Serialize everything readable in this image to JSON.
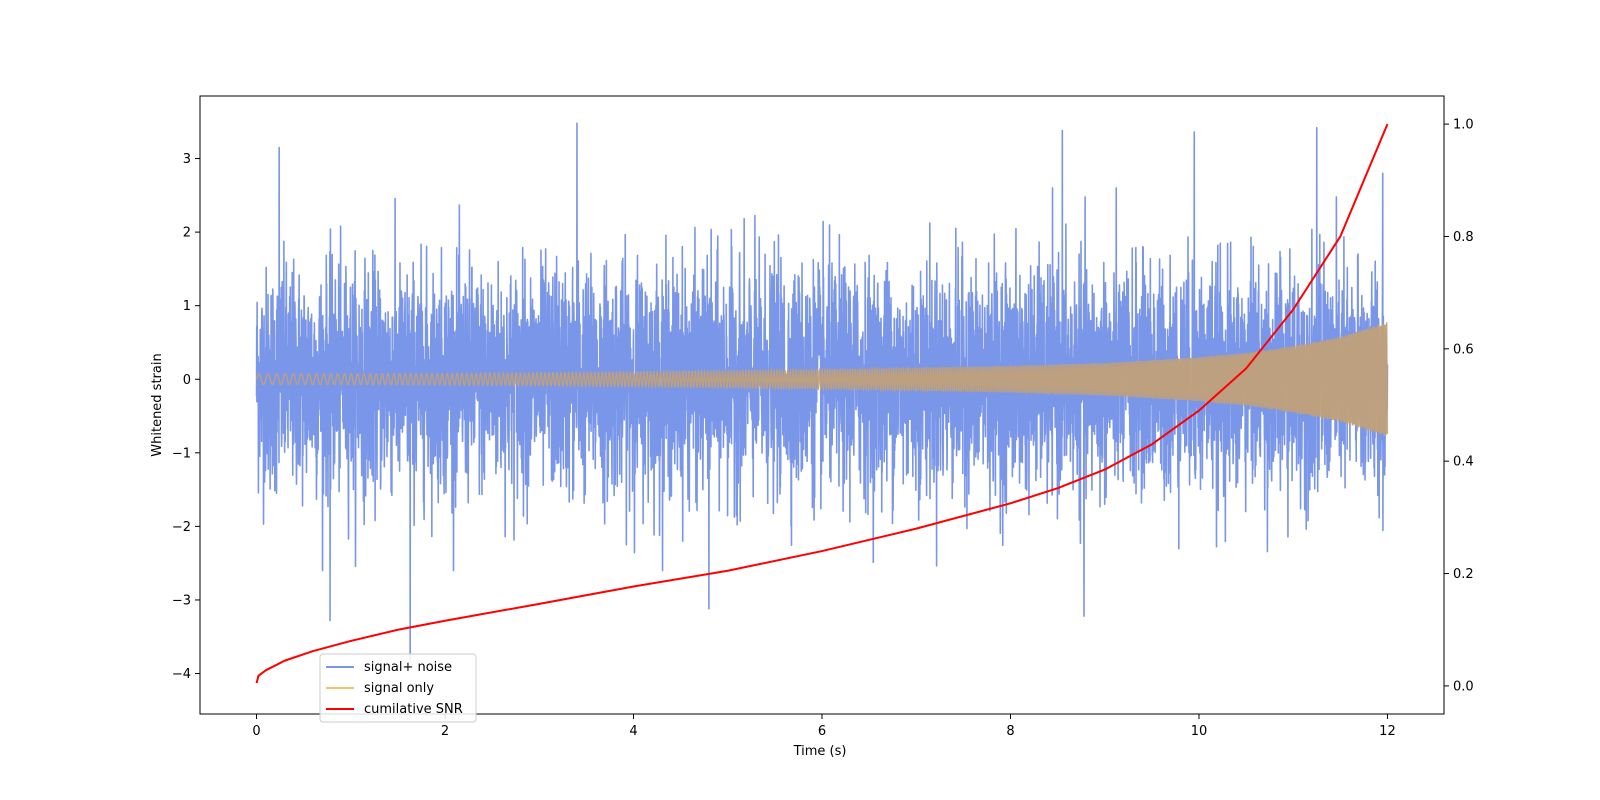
{
  "chart_data": {
    "type": "line",
    "xlabel": "Time (s)",
    "ylabel": "Whitened strain",
    "xlim": [
      -0.6,
      12.6
    ],
    "ylim_left": [
      -4.55,
      3.85
    ],
    "ylim_right": [
      -0.05,
      1.05
    ],
    "x_ticks": [
      0,
      2,
      4,
      6,
      8,
      10,
      12
    ],
    "y_ticks_left": [
      -4,
      -3,
      -2,
      -1,
      0,
      1,
      2,
      3
    ],
    "y_ticks_right": [
      0.0,
      0.2,
      0.4,
      0.6,
      0.8,
      1.0
    ],
    "grid": false,
    "legend_position": "lower-left",
    "colors": {
      "signal_noise": "#7a96e8",
      "signal_only": "#f5c070",
      "overlap": "#c0a07a",
      "cumulative_snr": "#ff0000"
    },
    "series": [
      {
        "name": "signal+ noise",
        "axis": "left",
        "description_values": {
          "x_range": [
            0,
            12
          ],
          "typical_range": [
            -2.0,
            2.0
          ],
          "peaks": [
            {
              "x": 0.24,
              "y": 3.15
            },
            {
              "x": 1.63,
              "y": -3.8
            },
            {
              "x": 0.78,
              "y": -3.28
            },
            {
              "x": 3.4,
              "y": 3.48
            },
            {
              "x": 4.8,
              "y": -3.12
            },
            {
              "x": 8.55,
              "y": 3.38
            },
            {
              "x": 8.78,
              "y": -3.22
            },
            {
              "x": 9.95,
              "y": 3.36
            },
            {
              "x": 11.25,
              "y": 3.42
            },
            {
              "x": 11.95,
              "y": 2.8
            }
          ]
        }
      },
      {
        "name": "signal only",
        "axis": "left",
        "envelope": {
          "x": [
            0,
            2,
            4,
            6,
            8,
            9,
            10,
            10.5,
            11,
            11.5,
            12
          ],
          "amplitude": [
            0.07,
            0.08,
            0.1,
            0.13,
            0.18,
            0.22,
            0.3,
            0.36,
            0.45,
            0.58,
            0.78
          ]
        }
      },
      {
        "name": "cumilative SNR",
        "axis": "right",
        "x": [
          0,
          0.02,
          0.1,
          0.3,
          0.6,
          1,
          1.5,
          2,
          3,
          4,
          5,
          6,
          7,
          8,
          8.5,
          9,
          9.5,
          10,
          10.5,
          11,
          11.5,
          12
        ],
        "y": [
          0.005,
          0.018,
          0.028,
          0.045,
          0.062,
          0.08,
          0.1,
          0.116,
          0.146,
          0.177,
          0.205,
          0.24,
          0.28,
          0.325,
          0.352,
          0.385,
          0.43,
          0.49,
          0.565,
          0.67,
          0.8,
          1.0
        ]
      }
    ]
  }
}
